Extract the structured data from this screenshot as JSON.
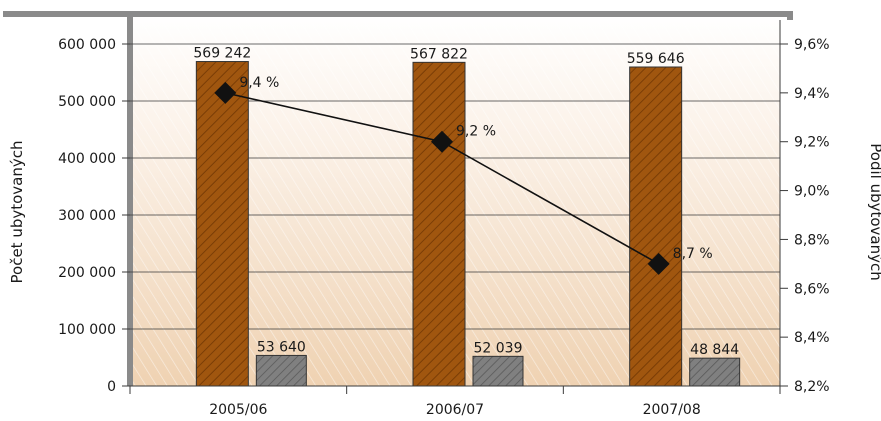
{
  "chart_data": {
    "type": "bar",
    "categories": [
      "2005/06",
      "2006/07",
      "2007/08"
    ],
    "series": [
      {
        "values": [
          569242,
          567822,
          559646
        ],
        "labels": [
          "569 242",
          "567 822",
          "559 646"
        ],
        "color": "#a0560f",
        "axis": "left"
      },
      {
        "values": [
          53640,
          52039,
          48844
        ],
        "labels": [
          "53 640",
          "52 039",
          "48 844"
        ],
        "color": "#7c7c7c",
        "axis": "left"
      },
      {
        "type": "line",
        "values": [
          9.4,
          9.2,
          8.7
        ],
        "labels": [
          "9,4 %",
          "9,2 %",
          "8,7 %"
        ],
        "color": "#111111",
        "marker": "diamond",
        "axis": "right"
      }
    ],
    "ylabel": "Počet ubytovaných",
    "y2label": "Podíl ubytovaných",
    "ylim": [
      0,
      600000
    ],
    "y2lim": [
      8.2,
      9.6
    ],
    "yticks": [
      0,
      100000,
      200000,
      300000,
      400000,
      500000,
      600000
    ],
    "ytick_labels": [
      "0",
      "100 000",
      "200 000",
      "300 000",
      "400 000",
      "500 000",
      "600 000"
    ],
    "y2ticks": [
      8.2,
      8.4,
      8.6,
      8.8,
      9.0,
      9.2,
      9.4,
      9.6
    ],
    "y2tick_labels": [
      "8,2%",
      "8,4%",
      "8,6%",
      "8,8%",
      "9,0%",
      "9,2%",
      "9,4%",
      "9,6%"
    ],
    "grid": true,
    "background_color": "#f2dcc4"
  }
}
